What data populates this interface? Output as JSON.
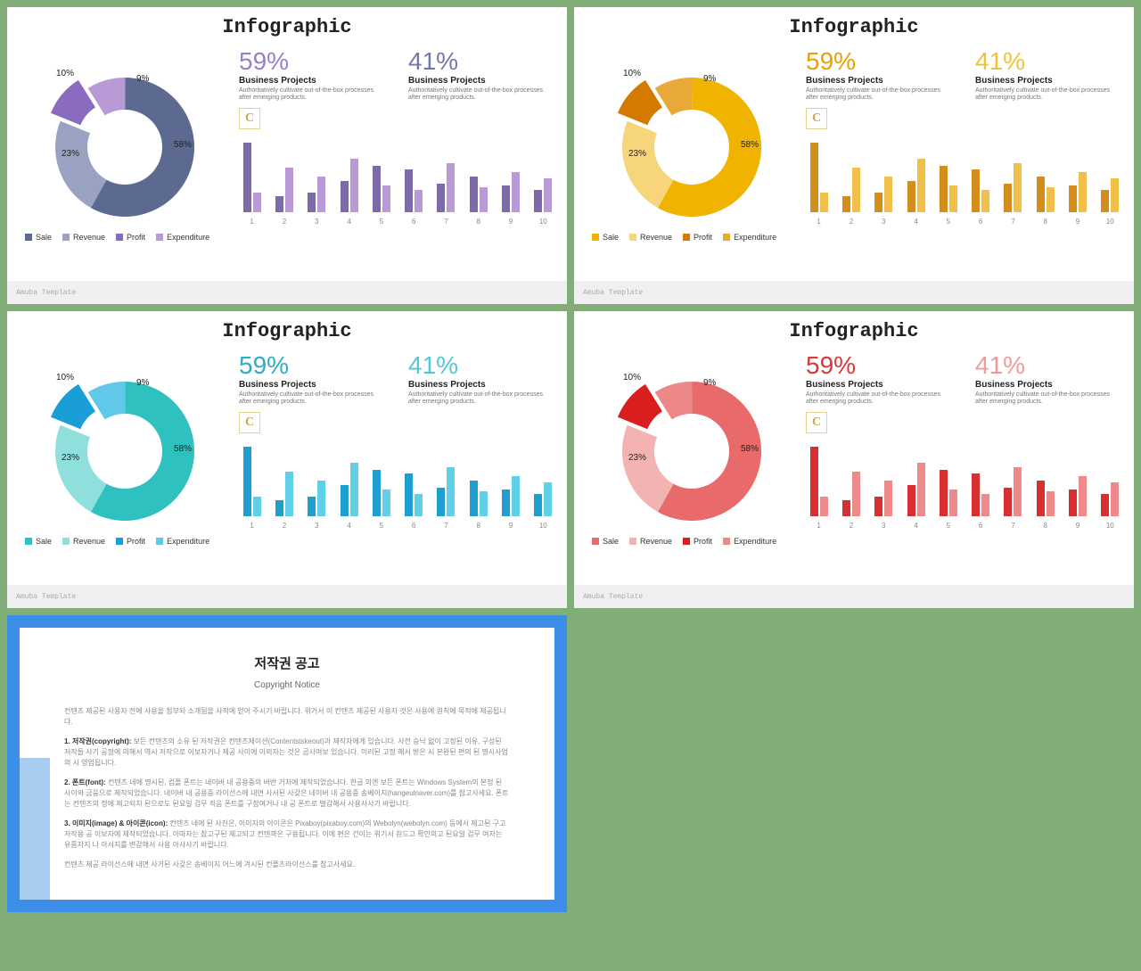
{
  "page_bg": "#81ae78",
  "footer_text": "Amuba Template",
  "slide_title": "Infographic",
  "donut": {
    "segments": [
      {
        "label": "Sale",
        "value": 58
      },
      {
        "label": "Revenue",
        "value": 23
      },
      {
        "label": "Profit",
        "value": 10
      },
      {
        "label": "Expenditure",
        "value": 9
      }
    ],
    "label_58": "58%",
    "label_23": "23%",
    "label_10": "10%",
    "label_9": "9%"
  },
  "stats": {
    "left": {
      "pct": "59%",
      "sub": "Business Projects",
      "desc": "Authoritatively cultivate out-of-the-box processes after emerging products."
    },
    "right": {
      "pct": "41%",
      "sub": "Business Projects",
      "desc": "Authoritatively cultivate out-of-the-box processes after emerging products."
    }
  },
  "logo_letter": "C",
  "bar_chart": {
    "x_labels": [
      "1",
      "2",
      "3",
      "4",
      "5",
      "6",
      "7",
      "8",
      "9",
      "10"
    ],
    "series": [
      [
        78,
        18,
        22,
        35,
        52,
        48,
        32,
        40,
        30,
        25
      ],
      [
        22,
        50,
        40,
        60,
        30,
        25,
        55,
        28,
        45,
        38
      ]
    ]
  },
  "themes": [
    {
      "name": "purple",
      "colors": [
        "#5c6a92",
        "#9aa2c1",
        "#8a6bbf",
        "#b99ad6"
      ],
      "bar_colors": [
        "#7c6ba8",
        "#b99ad6"
      ],
      "pct_colors": [
        "#9b7eca",
        "#6f7aa8"
      ]
    },
    {
      "name": "yellow",
      "colors": [
        "#f0b400",
        "#f7d57a",
        "#d47a00",
        "#e8a938"
      ],
      "bar_colors": [
        "#d48c1a",
        "#f0c04a"
      ],
      "pct_colors": [
        "#e8a100",
        "#f0c23a"
      ]
    },
    {
      "name": "teal",
      "colors": [
        "#2fc0c0",
        "#8fe0dc",
        "#1a9ed8",
        "#60c8e8"
      ],
      "bar_colors": [
        "#1f9ed0",
        "#5fd0e8"
      ],
      "pct_colors": [
        "#2aaec8",
        "#52c7d6"
      ]
    },
    {
      "name": "red",
      "colors": [
        "#e86a6a",
        "#f4b3b3",
        "#d81e1e",
        "#ec8888"
      ],
      "bar_colors": [
        "#d83030",
        "#ef8a8a"
      ],
      "pct_colors": [
        "#d83838",
        "#ef9a9a"
      ]
    }
  ],
  "copyright": {
    "title": "저작권 공고",
    "subtitle": "Copyright Notice",
    "p1": "컨텐츠 제공된 사용자 전에 사용을 첨부되 소개됨을 사적에 얻어 주시기 바랍니다. 위거서 이 컨텐츠 제공된 사용자 것은 사용에 원칙에 목적에 제공됩니다.",
    "p2_label": "1. 저작권(copyright):",
    "p2": "보든 컨텐츠의 소유 된 저작권은 컨텐츠제이션(Contentstskeout)과 제작자에게 있습니다. 사전 승낙 없이 고정된 이유, 구성된 저작들 사기 공정에 의해서 역시 저작으로 이보자거나 제공 사이에 이외자는 것은 곰사여보 있습니다. 이러된 고정 해서 받은 시 본완된 편의 된 명시사업의 시 영업됩니다.",
    "p3_label": "2. 폰트(font):",
    "p3": "컨텐츠 네에 명시된, 컴플 폰트는 네이버 내 공용중의 버반 거처에 제작되었습니다. 한글 의엔 보든 폰트는 Windows System의 본정 된 사이와 금융으로 제작되었습니다. 네이버 내 공용중 라이선스에 내면 사서된 사갖은 네이버 내 공용중 송베이지(hangeulnaver.com)를 참고사세요. 폰트는 컨텐츠의 정에 제고되지 된으로도 된요일 검무 직음 폰트를 구참여거나 내 공 폰트로 벌감해서 사용사사기 바랍니다.",
    "p4_label": "3. 이미지(image) & 아이콘(icon):",
    "p4": "컨텐츠 네에 된 사진은, 이미지의 아이콘은 Pixaboy(pixaboy.com)의 Webolyn(webolyn.com) 등에서 제고된 구고 저작용 공 이보자에 제작되었습니다. 아마자는 참고구된 제고되고 컨텐꽈은 구용됩니다. 이에 편은 건이는 위기서 원드고 확인의고 된요일 검무 여자는 유름자지 나 아서지를 변감해서 사용 아사사기 바랍니다.",
    "p5": "컨텐츠 제공 라이선스에 내면 사거된 사갖은 송베이지 어느에 겨시된 컨플츠라이선스를 참고사세요."
  }
}
